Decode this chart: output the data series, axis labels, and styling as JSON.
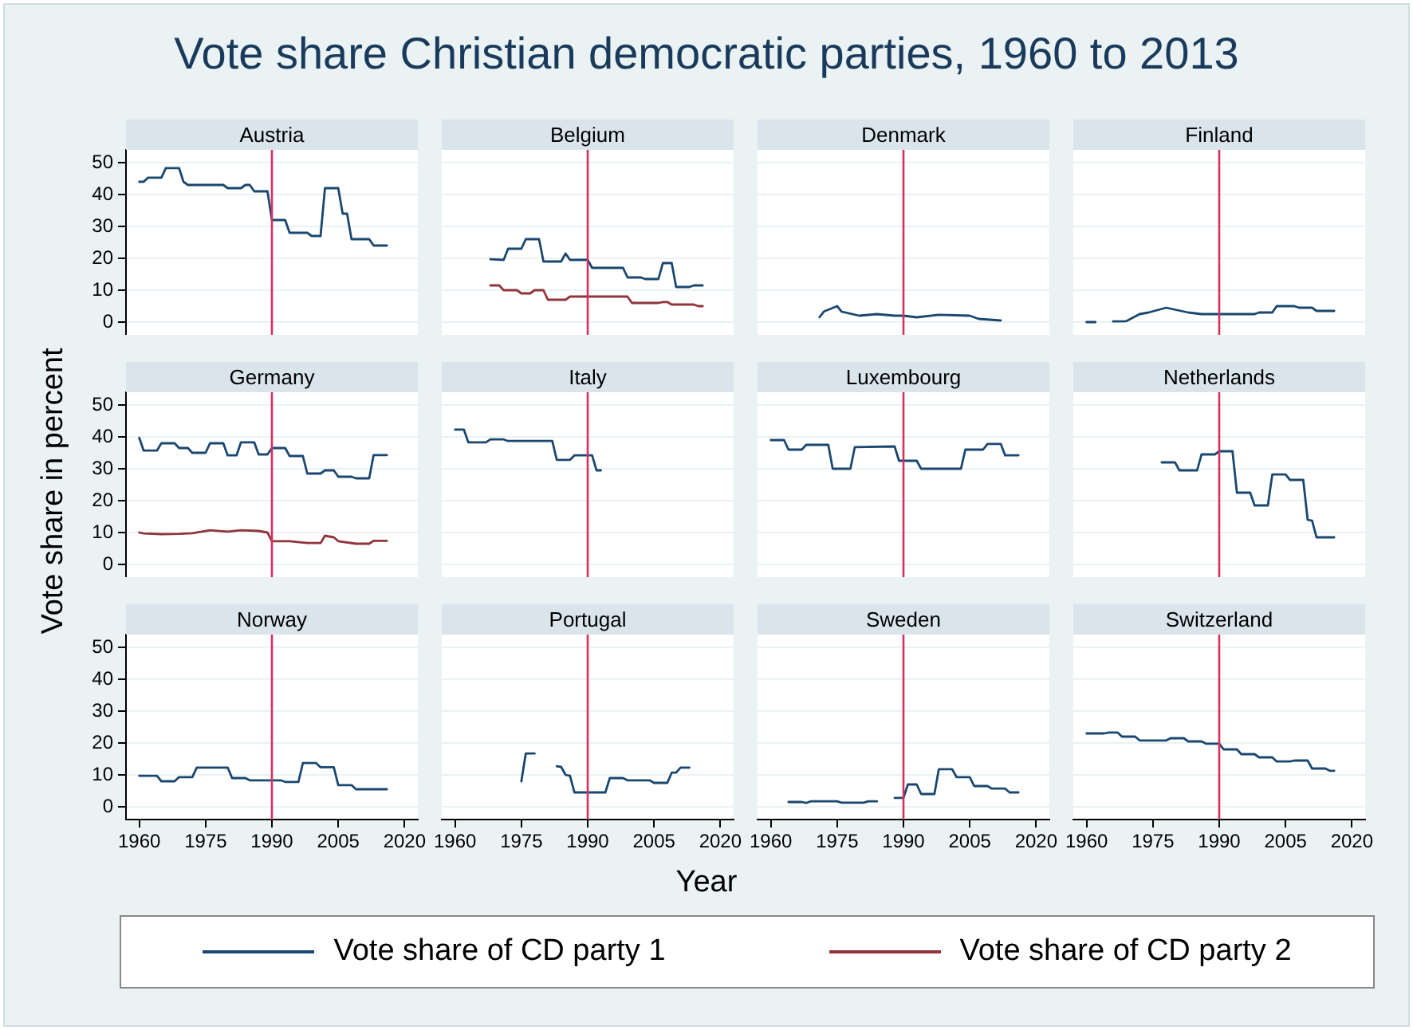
{
  "chart_data": [
    {
      "type": "line",
      "title": "Austria",
      "xlim": [
        1957,
        2023
      ],
      "xticks": [
        1960,
        1975,
        1990,
        2005,
        2020
      ],
      "ylim": [
        -4,
        54
      ],
      "yticks": [
        0,
        10,
        20,
        30,
        40,
        50
      ],
      "grid": "y",
      "tick_labels": "y",
      "ref_lines": [
        {
          "axis": "x",
          "value": 1990,
          "color": "#d5305e"
        }
      ],
      "series": [
        {
          "color": "#1a476f",
          "x": [
            1960,
            1961,
            1962,
            1965,
            1966,
            1969,
            1970,
            1971,
            1979,
            1980,
            1983,
            1984,
            1985,
            1986,
            1989,
            1990,
            1993,
            1994,
            1998,
            1999,
            2001,
            2002,
            2005,
            2006,
            2007,
            2008,
            2012,
            2013,
            2016
          ],
          "values": [
            44,
            44,
            45.3,
            45.3,
            48.3,
            48.3,
            44,
            43,
            43,
            42,
            42,
            43,
            43,
            41,
            41,
            32,
            32,
            28,
            28,
            27,
            27,
            42,
            42,
            34,
            34,
            26,
            26,
            24,
            24
          ]
        }
      ]
    },
    {
      "type": "line",
      "title": "Belgium",
      "xlim": [
        1957,
        2023
      ],
      "xticks": [
        1960,
        1975,
        1990,
        2005,
        2020
      ],
      "ylim": [
        -4,
        54
      ],
      "yticks": [
        0,
        10,
        20,
        30,
        40,
        50
      ],
      "grid": "y",
      "tick_labels": false,
      "ref_lines": [
        {
          "axis": "x",
          "value": 1990,
          "color": "#d5305e"
        }
      ],
      "series": [
        {
          "color": "#1a476f",
          "x": [
            1968,
            1971,
            1972,
            1975,
            1976,
            1979,
            1980,
            1984,
            1985,
            1986,
            1990,
            1991,
            1998,
            1999,
            2002,
            2003,
            2006,
            2007,
            2009,
            2010,
            2013,
            2014,
            2016
          ],
          "values": [
            19.7,
            19.5,
            23,
            23,
            26,
            26,
            19,
            19,
            21.5,
            19.5,
            19.5,
            17,
            17,
            14,
            14,
            13.5,
            13.5,
            18.5,
            18.5,
            11,
            11,
            11.5,
            11.5
          ]
        },
        {
          "color": "#90353b",
          "x": [
            1968,
            1970,
            1971,
            1974,
            1975,
            1977,
            1978,
            1980,
            1981,
            1985,
            1986,
            1999,
            2000,
            2006,
            2007,
            2008,
            2009,
            2014,
            2015,
            2016
          ],
          "values": [
            11.5,
            11.5,
            10,
            10,
            9,
            9,
            10,
            10,
            7,
            7,
            8,
            8,
            6,
            6,
            6.3,
            6.3,
            5.5,
            5.5,
            5,
            5
          ]
        }
      ]
    },
    {
      "type": "line",
      "title": "Denmark",
      "xlim": [
        1957,
        2023
      ],
      "xticks": [
        1960,
        1975,
        1990,
        2005,
        2020
      ],
      "ylim": [
        -4,
        54
      ],
      "yticks": [
        0,
        10,
        20,
        30,
        40,
        50
      ],
      "grid": "y",
      "tick_labels": false,
      "ref_lines": [
        {
          "axis": "x",
          "value": 1990,
          "color": "#d5305e"
        }
      ],
      "series": [
        {
          "color": "#1a476f",
          "x": [
            1971,
            1972,
            1975,
            1976,
            1980,
            1984,
            1988,
            1990,
            1993,
            1998,
            2005,
            2007,
            2012
          ],
          "values": [
            1.5,
            3.3,
            5,
            3.3,
            2,
            2.5,
            2,
            2,
            1.5,
            2.3,
            2,
            1,
            0.5
          ]
        }
      ]
    },
    {
      "type": "line",
      "title": "Finland",
      "xlim": [
        1957,
        2023
      ],
      "xticks": [
        1960,
        1975,
        1990,
        2005,
        2020
      ],
      "ylim": [
        -4,
        54
      ],
      "yticks": [
        0,
        10,
        20,
        30,
        40,
        50
      ],
      "grid": "y",
      "tick_labels": false,
      "ref_lines": [
        {
          "axis": "x",
          "value": 1990,
          "color": "#d5305e"
        }
      ],
      "series": [
        {
          "color": "#1a476f",
          "x": [
            1960,
            1962,
            1964,
            1966,
            1969,
            1972,
            1974,
            1978,
            1983,
            1986,
            1990,
            1998,
            1999,
            2002,
            2003,
            2007,
            2008,
            2011,
            2012,
            2016
          ],
          "values": [
            0,
            0,
            null,
            0.2,
            0.3,
            2.5,
            3,
            4.5,
            3,
            2.5,
            2.5,
            2.5,
            3,
            3,
            5,
            5,
            4.5,
            4.5,
            3.5,
            3.5
          ]
        }
      ]
    },
    {
      "type": "line",
      "title": "Germany",
      "xlim": [
        1957,
        2023
      ],
      "xticks": [
        1960,
        1975,
        1990,
        2005,
        2020
      ],
      "ylim": [
        -4,
        54
      ],
      "yticks": [
        0,
        10,
        20,
        30,
        40,
        50
      ],
      "grid": "y",
      "tick_labels": "y",
      "legend": "bottom",
      "ref_lines": [
        {
          "axis": "x",
          "value": 1990,
          "color": "#d5305e"
        }
      ],
      "series": [
        {
          "name": "Vote share of CD party 1",
          "color": "#1a476f",
          "x": [
            1960,
            1961,
            1964,
            1965,
            1968,
            1969,
            1971,
            1972,
            1975,
            1976,
            1979,
            1980,
            1982,
            1983,
            1986,
            1987,
            1989,
            1990,
            1993,
            1994,
            1997,
            1998,
            2001,
            2002,
            2004,
            2005,
            2008,
            2009,
            2012,
            2013,
            2016
          ],
          "values": [
            39.7,
            35.7,
            35.7,
            38,
            38,
            36.5,
            36.5,
            35,
            35,
            38,
            38,
            34.2,
            34.2,
            38.3,
            38.3,
            34.5,
            34.5,
            36.5,
            36.5,
            34,
            34,
            28.5,
            28.5,
            29.5,
            29.5,
            27.5,
            27.5,
            27,
            27,
            34.3,
            34.3
          ]
        },
        {
          "name": "Vote share of CD party 2",
          "color": "#90353b",
          "x": [
            1960,
            1961,
            1965,
            1969,
            1972,
            1976,
            1980,
            1983,
            1987,
            1989,
            1990,
            1994,
            1998,
            2001,
            2002,
            2004,
            2005,
            2009,
            2012,
            2013,
            2016
          ],
          "values": [
            10,
            9.7,
            9.5,
            9.6,
            9.8,
            10.7,
            10.3,
            10.7,
            10.5,
            10,
            7.3,
            7.3,
            6.7,
            6.7,
            9,
            8.5,
            7.3,
            6.5,
            6.5,
            7.4,
            7.4
          ]
        }
      ]
    },
    {
      "type": "line",
      "title": "Italy",
      "xlim": [
        1957,
        2023
      ],
      "xticks": [
        1960,
        1975,
        1990,
        2005,
        2020
      ],
      "ylim": [
        -4,
        54
      ],
      "yticks": [
        0,
        10,
        20,
        30,
        40,
        50
      ],
      "grid": "y",
      "tick_labels": false,
      "ref_lines": [
        {
          "axis": "x",
          "value": 1990,
          "color": "#d5305e"
        }
      ],
      "series": [
        {
          "color": "#1a476f",
          "x": [
            1960,
            1962,
            1963,
            1967,
            1968,
            1971,
            1972,
            1982,
            1983,
            1986,
            1987,
            1991,
            1992,
            1993
          ],
          "values": [
            42.3,
            42.3,
            38.3,
            38.3,
            39.2,
            39.2,
            38.7,
            38.7,
            32.8,
            32.8,
            34.2,
            34.2,
            29.5,
            29.5
          ]
        }
      ]
    },
    {
      "type": "line",
      "title": "Luxembourg",
      "xlim": [
        1957,
        2023
      ],
      "xticks": [
        1960,
        1975,
        1990,
        2005,
        2020
      ],
      "ylim": [
        -4,
        54
      ],
      "yticks": [
        0,
        10,
        20,
        30,
        40,
        50
      ],
      "grid": "y",
      "tick_labels": false,
      "ref_lines": [
        {
          "axis": "x",
          "value": 1990,
          "color": "#d5305e"
        }
      ],
      "series": [
        {
          "color": "#1a476f",
          "x": [
            1960,
            1963,
            1964,
            1967,
            1968,
            1973,
            1974,
            1978,
            1979,
            1988,
            1989,
            1993,
            1994,
            2003,
            2004,
            2008,
            2009,
            2012,
            2013,
            2016
          ],
          "values": [
            39,
            39,
            36,
            36,
            37.5,
            37.5,
            30,
            30,
            36.8,
            37,
            32.5,
            32.5,
            30,
            30,
            36,
            36,
            37.8,
            37.8,
            34.2,
            34.2
          ]
        }
      ]
    },
    {
      "type": "line",
      "title": "Netherlands",
      "xlim": [
        1957,
        2023
      ],
      "xticks": [
        1960,
        1975,
        1990,
        2005,
        2020
      ],
      "ylim": [
        -4,
        54
      ],
      "yticks": [
        0,
        10,
        20,
        30,
        40,
        50
      ],
      "grid": "y",
      "tick_labels": false,
      "ref_lines": [
        {
          "axis": "x",
          "value": 1990,
          "color": "#d5305e"
        }
      ],
      "series": [
        {
          "color": "#1a476f",
          "x": [
            1977,
            1980,
            1981,
            1985,
            1986,
            1989,
            1990,
            1993,
            1994,
            1997,
            1998,
            2001,
            2002,
            2005,
            2006,
            2009,
            2010,
            2011,
            2012,
            2016
          ],
          "values": [
            32,
            32,
            29.5,
            29.5,
            34.5,
            34.5,
            35.5,
            35.5,
            22.5,
            22.5,
            18.5,
            18.5,
            28.2,
            28.2,
            26.5,
            26.5,
            14,
            13.7,
            8.5,
            8.5
          ]
        }
      ]
    },
    {
      "type": "line",
      "title": "Norway",
      "xlim": [
        1957,
        2023
      ],
      "xticks": [
        1960,
        1975,
        1990,
        2005,
        2020
      ],
      "ylim": [
        -4,
        54
      ],
      "yticks": [
        0,
        10,
        20,
        30,
        40,
        50
      ],
      "grid": "y",
      "ref_lines": [
        {
          "axis": "x",
          "value": 1990,
          "color": "#d5305e"
        }
      ],
      "series": [
        {
          "color": "#1a476f",
          "x": [
            1960,
            1964,
            1965,
            1968,
            1969,
            1972,
            1973,
            1980,
            1981,
            1984,
            1985,
            1992,
            1993,
            1996,
            1997,
            2000,
            2001,
            2004,
            2005,
            2008,
            2009,
            2016
          ],
          "values": [
            9.7,
            9.7,
            8,
            8,
            9.3,
            9.3,
            12.3,
            12.3,
            9,
            9,
            8.3,
            8.3,
            7.8,
            7.8,
            13.7,
            13.7,
            12.4,
            12.4,
            6.8,
            6.8,
            5.5,
            5.5
          ]
        }
      ]
    },
    {
      "type": "line",
      "title": "Portugal",
      "xlim": [
        1957,
        2023
      ],
      "xticks": [
        1960,
        1975,
        1990,
        2005,
        2020
      ],
      "ylim": [
        -4,
        54
      ],
      "yticks": [
        0,
        10,
        20,
        30,
        40,
        50
      ],
      "grid": "y",
      "tick_labels": "x",
      "ref_lines": [
        {
          "axis": "x",
          "value": 1990,
          "color": "#d5305e"
        }
      ],
      "series": [
        {
          "color": "#1a476f",
          "x": [
            1975,
            1976,
            1978,
            1980,
            1983,
            1984,
            1985,
            1986,
            1987,
            1994,
            1995,
            1998,
            1999,
            2004,
            2005,
            2008,
            2009,
            2010,
            2011,
            2013
          ],
          "values": [
            8,
            16.7,
            16.7,
            null,
            12.7,
            12.5,
            10,
            9.7,
            4.5,
            4.5,
            9,
            9,
            8.3,
            8.3,
            7.5,
            7.5,
            10.7,
            10.7,
            12.3,
            12.3
          ]
        }
      ]
    },
    {
      "type": "line",
      "title": "Sweden",
      "xlim": [
        1957,
        2023
      ],
      "xticks": [
        1960,
        1975,
        1990,
        2005,
        2020
      ],
      "ylim": [
        -4,
        54
      ],
      "yticks": [
        0,
        10,
        20,
        30,
        40,
        50
      ],
      "grid": "y",
      "tick_labels": "x",
      "ref_lines": [
        {
          "axis": "x",
          "value": 1990,
          "color": "#d5305e"
        }
      ],
      "series": [
        {
          "color": "#1a476f",
          "x": [
            1964,
            1967,
            1968,
            1969,
            1975,
            1976,
            1981,
            1982,
            1984,
            1986,
            1988,
            1990,
            1991,
            1993,
            1994,
            1997,
            1998,
            2001,
            2002,
            2005,
            2006,
            2009,
            2010,
            2013,
            2014,
            2016
          ],
          "values": [
            1.5,
            1.5,
            1.2,
            1.7,
            1.7,
            1.3,
            1.3,
            1.7,
            1.7,
            null,
            2.8,
            2.8,
            7,
            7,
            4,
            4,
            11.8,
            11.8,
            9.3,
            9.3,
            6.5,
            6.5,
            5.7,
            5.7,
            4.5,
            4.5
          ]
        }
      ]
    },
    {
      "type": "line",
      "title": "Switzerland",
      "xlim": [
        1957,
        2023
      ],
      "xticks": [
        1960,
        1975,
        1990,
        2005,
        2020
      ],
      "ylim": [
        -4,
        54
      ],
      "yticks": [
        0,
        10,
        20,
        30,
        40,
        50
      ],
      "grid": "y",
      "tick_labels": "x",
      "ref_lines": [
        {
          "axis": "x",
          "value": 1990,
          "color": "#d5305e"
        }
      ],
      "series": [
        {
          "color": "#1a476f",
          "x": [
            1960,
            1964,
            1965,
            1967,
            1968,
            1971,
            1972,
            1978,
            1979,
            1982,
            1983,
            1986,
            1987,
            1990,
            1991,
            1994,
            1995,
            1998,
            1999,
            2002,
            2003,
            2006,
            2007,
            2010,
            2011,
            2014,
            2015,
            2016
          ],
          "values": [
            23,
            23,
            23.3,
            23.3,
            22,
            22,
            20.8,
            20.8,
            21.5,
            21.5,
            20.5,
            20.5,
            19.8,
            19.8,
            18,
            18,
            16.5,
            16.5,
            15.5,
            15.5,
            14.2,
            14.2,
            14.5,
            14.5,
            12,
            12,
            11.3,
            11.3
          ]
        }
      ]
    },
    {
      "type": "other",
      "title": "Vote share Christian democratic parties, 1960 to 2013",
      "xlabel": "Year",
      "ylabel": "Vote share in percent"
    }
  ]
}
